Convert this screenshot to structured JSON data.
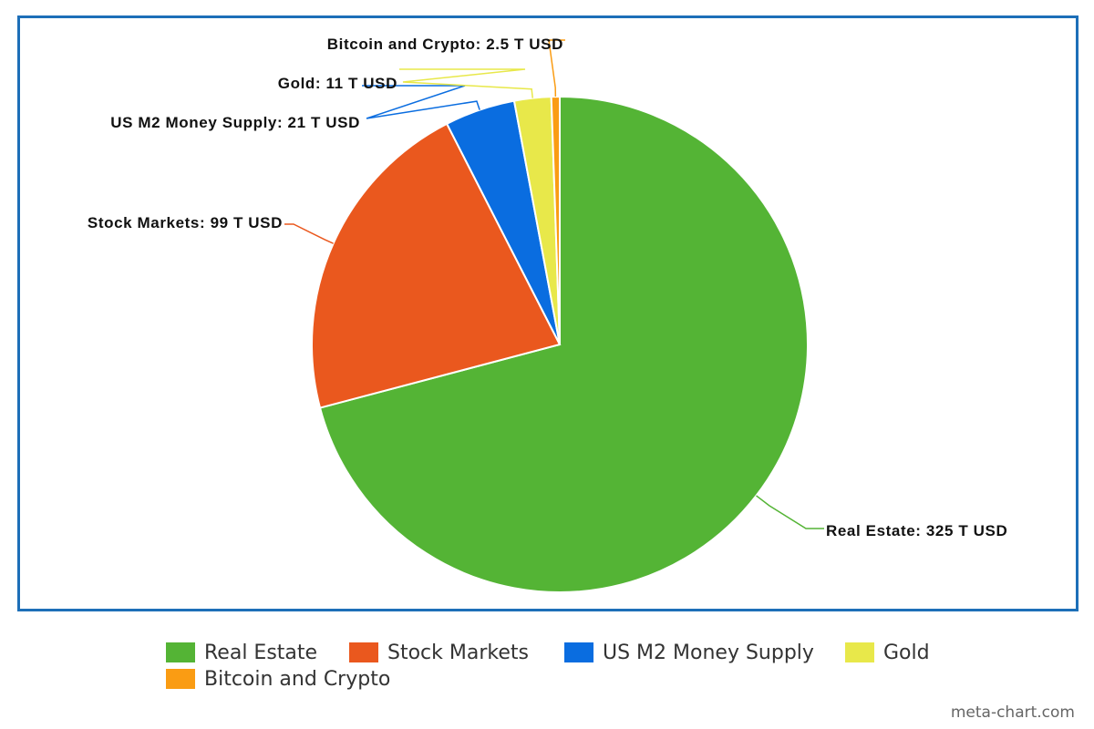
{
  "chart_data": {
    "type": "pie",
    "title": "",
    "categories": [
      "Real Estate",
      "Stock Markets",
      "US M2 Money Supply",
      "Gold",
      "Bitcoin and Crypto"
    ],
    "values": [
      325,
      99,
      21,
      11,
      2.5
    ],
    "unit": "T USD",
    "slice_labels": [
      "Real Estate: 325 T USD",
      "Stock Markets: 99 T USD",
      "US M2 Money Supply: 21 T USD",
      "Gold: 11 T USD",
      "Bitcoin and Crypto: 2.5 T USD"
    ],
    "colors": [
      "#54b435",
      "#ea581e",
      "#0a6de0",
      "#e8e84a",
      "#fa9c13"
    ],
    "start_angle": "12 o'clock",
    "direction": "clockwise",
    "legend_position": "bottom"
  },
  "credit": "meta-chart.com"
}
